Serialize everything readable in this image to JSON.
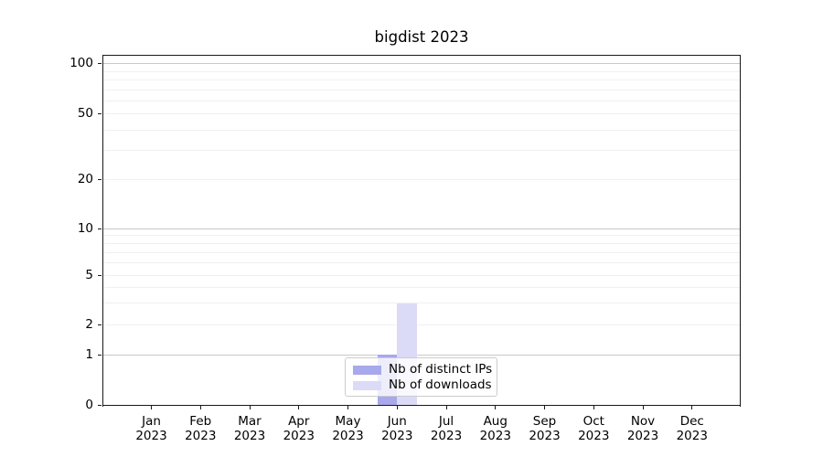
{
  "figure": {
    "title": "bigdist 2023"
  },
  "chart_data": {
    "type": "bar",
    "title": "bigdist 2023",
    "categories": [
      "Jan 2023",
      "Feb 2023",
      "Mar 2023",
      "Apr 2023",
      "May 2023",
      "Jun 2023",
      "Jul 2023",
      "Aug 2023",
      "Sep 2023",
      "Oct 2023",
      "Nov 2023",
      "Dec 2023"
    ],
    "series": [
      {
        "name": "Nb of distinct IPs",
        "color": "#a8a8ec",
        "values": [
          0,
          0,
          0,
          0,
          0,
          1,
          0,
          0,
          0,
          0,
          0,
          0
        ]
      },
      {
        "name": "Nb of downloads",
        "color": "#dbdbf7",
        "values": [
          0,
          0,
          0,
          0,
          0,
          3,
          0,
          0,
          0,
          0,
          0,
          0
        ]
      }
    ],
    "xlabel": "",
    "ylabel": "",
    "yscale": "symlog",
    "yticks": [
      0,
      1,
      2,
      5,
      10,
      20,
      50,
      100
    ],
    "major_gridline_values": [
      1,
      10,
      100
    ],
    "minor_gridline_values": [
      2,
      3,
      4,
      5,
      6,
      7,
      8,
      9,
      20,
      30,
      40,
      50,
      60,
      70,
      80,
      90
    ],
    "ylim": [
      0,
      113
    ],
    "grid": "horizontal major+minor",
    "legend_position": "lower center",
    "colors": {
      "distinct_ips": "#a8a8ec",
      "downloads": "#dbdbf7",
      "grid_major": "#c8c8c8",
      "grid_minor": "#f0f0f0",
      "spine": "#1a1a1a"
    }
  }
}
